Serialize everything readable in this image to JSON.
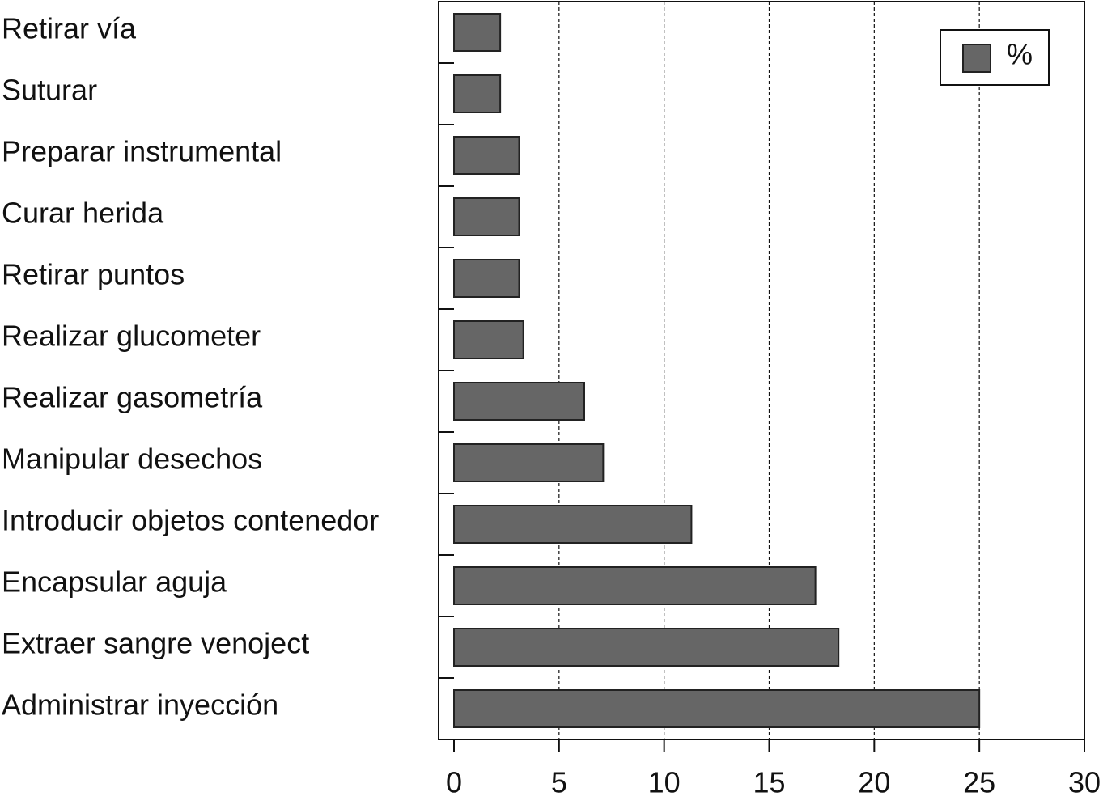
{
  "chart_data": {
    "type": "bar",
    "orientation": "horizontal",
    "categories": [
      "Retirar vía",
      "Suturar",
      "Preparar instrumental",
      "Curar herida",
      "Retirar puntos",
      "Realizar glucometer",
      "Realizar gasometría",
      "Manipular desechos",
      "Introducir objetos contenedor",
      "Encapsular aguja",
      "Extraer sangre venoject",
      "Administrar inyección"
    ],
    "series": [
      {
        "name": "%",
        "color": "#666666",
        "values": [
          2.2,
          2.2,
          3.1,
          3.1,
          3.1,
          3.3,
          6.2,
          7.1,
          11.3,
          17.2,
          18.3,
          25.0
        ]
      }
    ],
    "xlim": [
      0,
      30
    ],
    "xticks": [
      0,
      5,
      10,
      15,
      20,
      25,
      30
    ],
    "grid": true,
    "legend": "upper right"
  }
}
